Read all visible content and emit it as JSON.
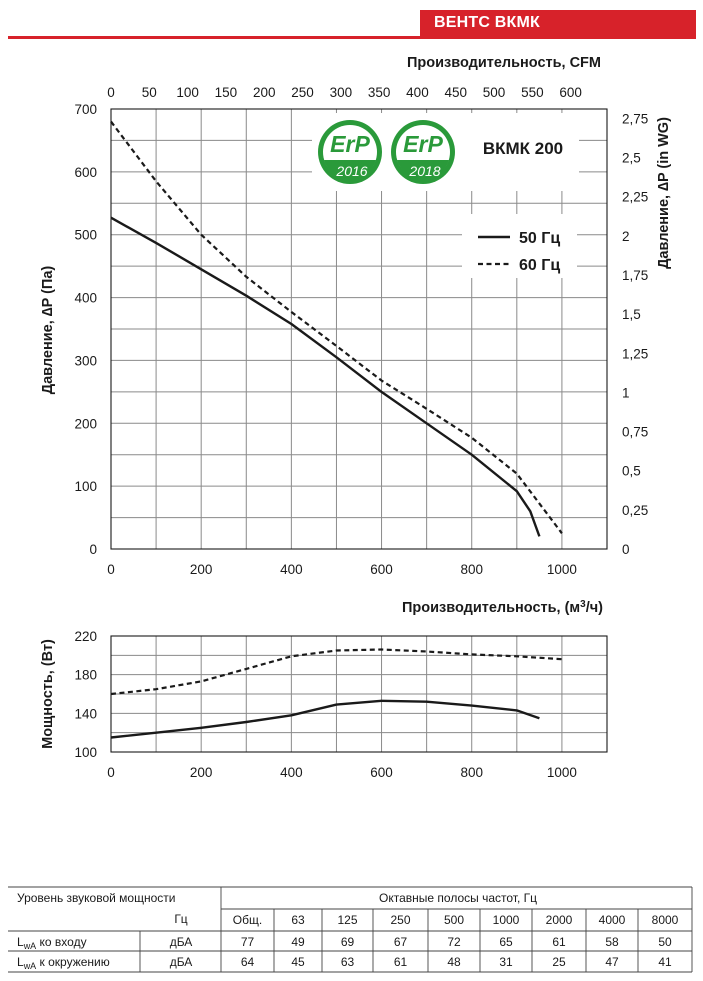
{
  "header": {
    "title": "ВЕНТС ВКМК",
    "accent_color": "#d7222a"
  },
  "badges": [
    {
      "label": "ErP",
      "year": "2016",
      "color": "#2a9a3a",
      "icon": "erp-2016-badge-icon"
    },
    {
      "label": "ErP",
      "year": "2018",
      "color": "#2a9a3a",
      "icon": "erp-2018-badge-icon"
    }
  ],
  "chart_data": [
    {
      "type": "line",
      "model": "ВКМК 200",
      "xlabel": "Производительность, (м³/ч)",
      "x2label": "Производительность, CFM",
      "ylabel": "Давление, ∆P (Па)",
      "y2label": "Давление, ∆P (in WG)",
      "xlim": [
        0,
        1000
      ],
      "ylim": [
        0,
        700
      ],
      "xticks": [
        "0",
        "200",
        "400",
        "600",
        "800",
        "1000"
      ],
      "yticks": [
        "0",
        "100",
        "200",
        "300",
        "400",
        "500",
        "600",
        "700"
      ],
      "x2ticks": [
        "0",
        "50",
        "100",
        "150",
        "200",
        "250",
        "300",
        "350",
        "400",
        "450",
        "500",
        "550",
        "600"
      ],
      "y2ticks": [
        "0",
        "0,25",
        "0,5",
        "0,75",
        "1",
        "1,25",
        "1,5",
        "1,75",
        "2",
        "2,25",
        "2,5",
        "2,75"
      ],
      "grid": true,
      "legend": "top-right",
      "series": [
        {
          "name": "50 Гц",
          "style": "solid",
          "x": [
            0,
            100,
            200,
            300,
            400,
            500,
            600,
            700,
            800,
            900,
            930,
            950
          ],
          "y": [
            527,
            487,
            445,
            403,
            358,
            305,
            250,
            200,
            150,
            92,
            60,
            20
          ]
        },
        {
          "name": "60 Гц",
          "style": "dashed",
          "x": [
            0,
            100,
            200,
            300,
            400,
            500,
            600,
            700,
            800,
            900,
            1000
          ],
          "y": [
            680,
            585,
            500,
            433,
            377,
            323,
            268,
            223,
            177,
            120,
            25
          ]
        }
      ]
    },
    {
      "type": "line",
      "xlabel": "",
      "ylabel": "Мощность, (Вт)",
      "xlim": [
        0,
        1000
      ],
      "ylim": [
        100,
        220
      ],
      "xticks": [
        "0",
        "200",
        "400",
        "600",
        "800",
        "1000"
      ],
      "yticks": [
        "100",
        "140",
        "180",
        "220"
      ],
      "grid": true,
      "series": [
        {
          "style": "solid",
          "x": [
            0,
            100,
            200,
            300,
            400,
            500,
            600,
            700,
            800,
            900,
            950
          ],
          "y": [
            115,
            120,
            125,
            131,
            138,
            149,
            153,
            152,
            148,
            143,
            135
          ]
        },
        {
          "style": "dashed",
          "x": [
            0,
            100,
            200,
            300,
            400,
            500,
            600,
            700,
            800,
            900,
            1000
          ],
          "y": [
            160,
            165,
            173,
            186,
            199,
            205,
            206,
            204,
            201,
            199,
            196
          ]
        }
      ]
    }
  ],
  "sound_table": {
    "title": "Уровень звуковой мощности",
    "bands_title": "Октавные полосы частот, Гц",
    "unit_label": "Гц",
    "columns": [
      "Общ.",
      "63",
      "125",
      "250",
      "500",
      "1000",
      "2000",
      "4000",
      "8000"
    ],
    "rows": [
      {
        "label_main": "L",
        "label_sub": "wA",
        "label_rest": " ко входу",
        "unit": "дБА",
        "values": [
          "77",
          "49",
          "69",
          "67",
          "72",
          "65",
          "61",
          "58",
          "50"
        ]
      },
      {
        "label_main": "L",
        "label_sub": "wA",
        "label_rest": " к окружению",
        "unit": "дБА",
        "values": [
          "64",
          "45",
          "63",
          "61",
          "48",
          "31",
          "25",
          "47",
          "41"
        ]
      }
    ]
  }
}
